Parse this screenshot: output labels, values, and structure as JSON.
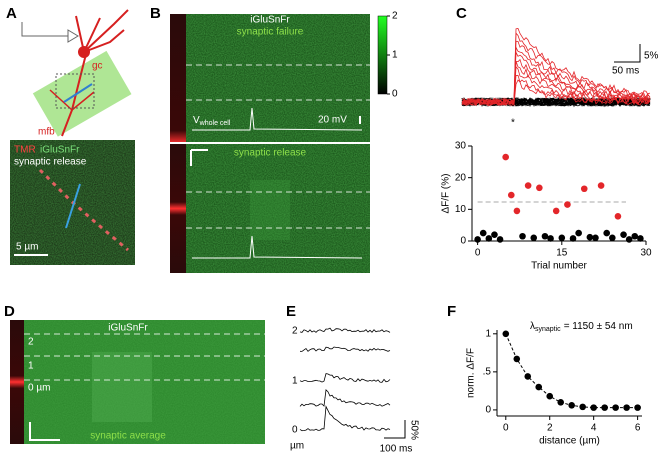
{
  "panels": {
    "a": {
      "label": "A",
      "gc": "gc",
      "mfb": "mfb",
      "legend_tmr": "TMR",
      "legend_sensor": "iGluSnFr",
      "legend_caption": "synaptic release",
      "scale": "5 µm"
    },
    "b": {
      "label": "B",
      "sensor": "iGluSnFr",
      "failure": "synaptic failure",
      "voltage_label": "V",
      "voltage_sub": "whole cell",
      "voltage_scale": "20 mV",
      "release": "synaptic release",
      "colorbar_ticks": [
        2,
        1,
        0
      ]
    },
    "c": {
      "label": "C",
      "time_scale": "50 ms",
      "amp_scale": "5%",
      "marker": "*"
    },
    "d": {
      "label": "D",
      "sensor": "iGluSnFr",
      "distances": [
        "2",
        "1",
        "0 µm"
      ],
      "caption": "synaptic average"
    },
    "e": {
      "label": "E",
      "distances": [
        "2",
        "1",
        "0"
      ],
      "unit": "µm",
      "amp_scale": "50%",
      "time_scale": "100 ms"
    },
    "f": {
      "label": "F",
      "lambda": "λ",
      "lambda_sub": "synaptic",
      "lambda_value": "= 1150 ± 54 nm"
    }
  },
  "chart_data": [
    {
      "type": "scatter",
      "xlabel": "Trial number",
      "ylabel": "ΔF/F (%)",
      "xlim": [
        -1,
        30
      ],
      "xticks": [
        0,
        15,
        30
      ],
      "ylim": [
        0,
        30
      ],
      "yticks": [
        0,
        10,
        20,
        30
      ],
      "threshold": 12.3,
      "series": [
        {
          "color": "#000000",
          "x": [
            0,
            1,
            2,
            3,
            4,
            8,
            10,
            12,
            13,
            15,
            17,
            18,
            20,
            21,
            23,
            24,
            26,
            27,
            28,
            29
          ],
          "values": [
            0.5,
            2.5,
            0.8,
            2,
            0.5,
            1.5,
            1,
            1.5,
            0.8,
            1,
            0.8,
            2.5,
            1.2,
            1,
            2.5,
            1,
            2,
            0.5,
            1.5,
            0.8
          ]
        },
        {
          "color": "#e3262a",
          "x": [
            5,
            6,
            7,
            9,
            11,
            14,
            16,
            19,
            22,
            25
          ],
          "values": [
            26.5,
            14.5,
            9.5,
            17.5,
            16.8,
            9.5,
            11.5,
            16.5,
            17.5,
            7.8
          ]
        }
      ]
    },
    {
      "type": "line",
      "xlabel": "distance (µm)",
      "ylabel": "norm. ΔF/F",
      "xlim": [
        -0.4,
        6.2
      ],
      "xticks": [
        0,
        2,
        4,
        6
      ],
      "ylim": [
        -0.08,
        1.05
      ],
      "yticks": [
        0,
        {
          "value": 0.5,
          "label": ".5"
        },
        1
      ],
      "series": [
        {
          "color": "#000000",
          "x": [
            0,
            0.5,
            1,
            1.5,
            2,
            2.5,
            3,
            3.5,
            4,
            4.5,
            5,
            5.5,
            6
          ],
          "values": [
            1,
            0.67,
            0.44,
            0.3,
            0.18,
            0.1,
            0.06,
            0.04,
            0.03,
            0.03,
            0.03,
            0.03,
            0.03
          ]
        }
      ]
    }
  ]
}
